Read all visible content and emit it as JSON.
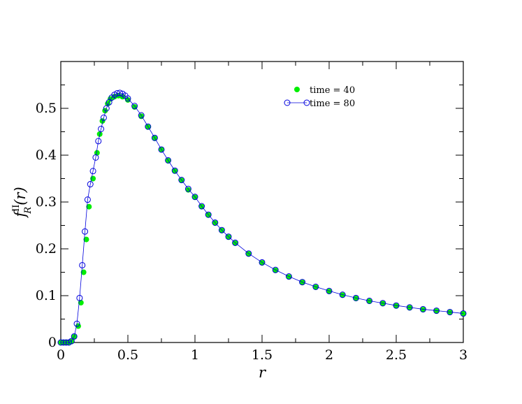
{
  "chart_data": {
    "type": "scatter",
    "xlabel": "r",
    "ylabel": {
      "base": "f",
      "superscript": "II",
      "subscript": "R",
      "argument": "(r)"
    },
    "xlim": [
      0,
      3
    ],
    "ylim": [
      0,
      0.6
    ],
    "x_ticks": [
      "0",
      "0.5",
      "1",
      "1.5",
      "2",
      "2.5",
      "3"
    ],
    "y_ticks": [
      "0",
      "0.1",
      "0.2",
      "0.3",
      "0.4",
      "0.5"
    ],
    "grid": false,
    "legend": {
      "placement": "top-right"
    },
    "series": [
      {
        "name": "time = 40",
        "marker": "filled-circle",
        "line": false,
        "color": "#00ee00",
        "points": [
          [
            0.0,
            0.0
          ],
          [
            0.02,
            0.0
          ],
          [
            0.04,
            0.0
          ],
          [
            0.06,
            0.0
          ],
          [
            0.08,
            0.002
          ],
          [
            0.1,
            0.012
          ],
          [
            0.13,
            0.035
          ],
          [
            0.15,
            0.085
          ],
          [
            0.17,
            0.15
          ],
          [
            0.19,
            0.22
          ],
          [
            0.21,
            0.29
          ],
          [
            0.24,
            0.35
          ],
          [
            0.27,
            0.405
          ],
          [
            0.29,
            0.445
          ],
          [
            0.31,
            0.473
          ],
          [
            0.33,
            0.495
          ],
          [
            0.35,
            0.51
          ],
          [
            0.37,
            0.52
          ],
          [
            0.4,
            0.525
          ],
          [
            0.43,
            0.527
          ],
          [
            0.46,
            0.525
          ],
          [
            0.5,
            0.518
          ],
          [
            0.55,
            0.503
          ],
          [
            0.6,
            0.483
          ],
          [
            0.65,
            0.46
          ],
          [
            0.7,
            0.436
          ],
          [
            0.75,
            0.412
          ],
          [
            0.8,
            0.388
          ],
          [
            0.85,
            0.366
          ],
          [
            0.9,
            0.346
          ],
          [
            0.95,
            0.326
          ],
          [
            1.0,
            0.31
          ],
          [
            1.05,
            0.29
          ],
          [
            1.1,
            0.272
          ],
          [
            1.15,
            0.255
          ],
          [
            1.2,
            0.239
          ],
          [
            1.25,
            0.225
          ],
          [
            1.3,
            0.212
          ],
          [
            1.4,
            0.189
          ],
          [
            1.5,
            0.17
          ],
          [
            1.6,
            0.154
          ],
          [
            1.7,
            0.14
          ],
          [
            1.8,
            0.128
          ],
          [
            1.9,
            0.118
          ],
          [
            2.0,
            0.109
          ],
          [
            2.1,
            0.101
          ],
          [
            2.2,
            0.094
          ],
          [
            2.3,
            0.088
          ],
          [
            2.4,
            0.083
          ],
          [
            2.5,
            0.078
          ],
          [
            2.6,
            0.074
          ],
          [
            2.7,
            0.07
          ],
          [
            2.8,
            0.067
          ],
          [
            2.9,
            0.064
          ],
          [
            3.0,
            0.061
          ]
        ]
      },
      {
        "name": "time = 80",
        "marker": "open-circle",
        "line": true,
        "color": "#0000dd",
        "points": [
          [
            0.0,
            0.0
          ],
          [
            0.02,
            0.0
          ],
          [
            0.04,
            0.0
          ],
          [
            0.06,
            0.0
          ],
          [
            0.08,
            0.003
          ],
          [
            0.1,
            0.013
          ],
          [
            0.12,
            0.04
          ],
          [
            0.14,
            0.095
          ],
          [
            0.16,
            0.165
          ],
          [
            0.18,
            0.237
          ],
          [
            0.2,
            0.305
          ],
          [
            0.22,
            0.338
          ],
          [
            0.24,
            0.366
          ],
          [
            0.26,
            0.395
          ],
          [
            0.28,
            0.43
          ],
          [
            0.3,
            0.456
          ],
          [
            0.32,
            0.48
          ],
          [
            0.34,
            0.5
          ],
          [
            0.36,
            0.513
          ],
          [
            0.38,
            0.523
          ],
          [
            0.4,
            0.529
          ],
          [
            0.42,
            0.532
          ],
          [
            0.44,
            0.533
          ],
          [
            0.46,
            0.531
          ],
          [
            0.48,
            0.527
          ],
          [
            0.5,
            0.521
          ],
          [
            0.55,
            0.505
          ],
          [
            0.6,
            0.485
          ],
          [
            0.65,
            0.461
          ],
          [
            0.7,
            0.437
          ],
          [
            0.75,
            0.412
          ],
          [
            0.8,
            0.389
          ],
          [
            0.85,
            0.367
          ],
          [
            0.9,
            0.347
          ],
          [
            0.95,
            0.328
          ],
          [
            1.0,
            0.311
          ],
          [
            1.05,
            0.291
          ],
          [
            1.1,
            0.273
          ],
          [
            1.15,
            0.256
          ],
          [
            1.2,
            0.24
          ],
          [
            1.25,
            0.226
          ],
          [
            1.3,
            0.213
          ],
          [
            1.4,
            0.19
          ],
          [
            1.5,
            0.171
          ],
          [
            1.6,
            0.155
          ],
          [
            1.7,
            0.141
          ],
          [
            1.8,
            0.129
          ],
          [
            1.9,
            0.119
          ],
          [
            2.0,
            0.11
          ],
          [
            2.1,
            0.102
          ],
          [
            2.2,
            0.095
          ],
          [
            2.3,
            0.089
          ],
          [
            2.4,
            0.084
          ],
          [
            2.5,
            0.079
          ],
          [
            2.6,
            0.075
          ],
          [
            2.7,
            0.071
          ],
          [
            2.8,
            0.068
          ],
          [
            2.9,
            0.065
          ],
          [
            3.0,
            0.062
          ]
        ]
      }
    ]
  }
}
